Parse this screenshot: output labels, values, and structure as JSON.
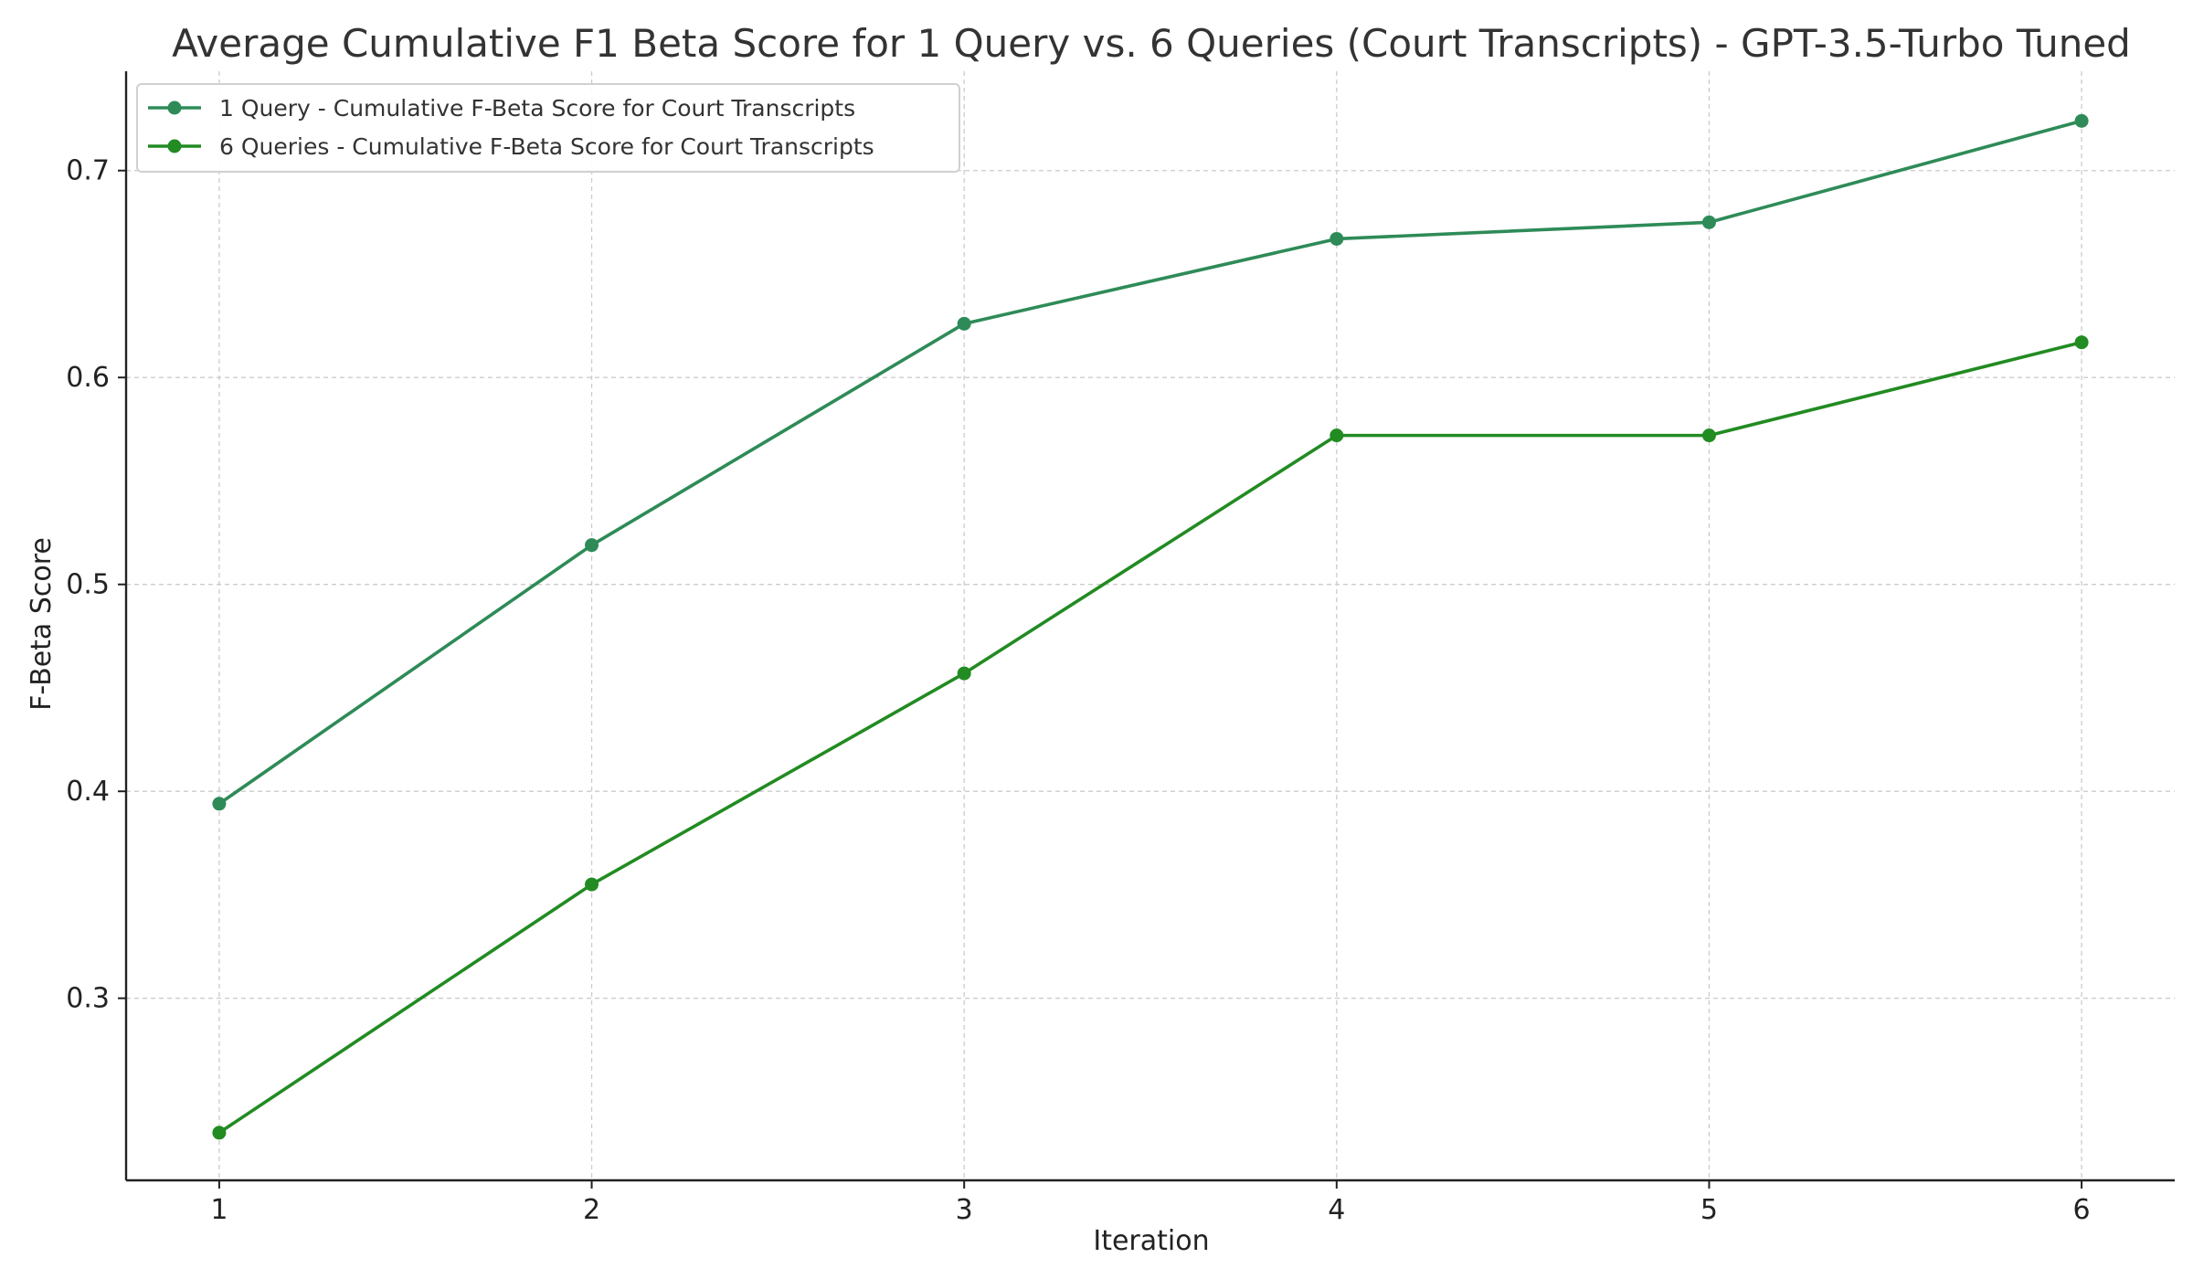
{
  "chart_data": {
    "type": "line",
    "title": "Average Cumulative F1 Beta Score for 1 Query vs. 6 Queries (Court Transcripts) - GPT-3.5-Turbo Tuned",
    "xlabel": "Iteration",
    "ylabel": "F-Beta Score",
    "x": [
      1,
      2,
      3,
      4,
      5,
      6
    ],
    "xlim": [
      0.75,
      6.25
    ],
    "ylim": [
      0.212,
      0.748
    ],
    "xticks": [
      1,
      2,
      3,
      4,
      5,
      6
    ],
    "yticks": [
      0.3,
      0.4,
      0.5,
      0.6,
      0.7
    ],
    "ytick_labels": [
      "0.3",
      "0.4",
      "0.5",
      "0.6",
      "0.7"
    ],
    "grid": true,
    "legend_position": "upper-left",
    "series": [
      {
        "name": "1 Query - Cumulative F-Beta Score for Court Transcripts",
        "values": [
          0.394,
          0.519,
          0.626,
          0.667,
          0.675,
          0.724
        ],
        "color": "#2e8b57",
        "marker": "circle"
      },
      {
        "name": "6 Queries - Cumulative F-Beta Score for Court Transcripts",
        "values": [
          0.235,
          0.355,
          0.457,
          0.572,
          0.572,
          0.617
        ],
        "color": "#228b22",
        "marker": "circle"
      }
    ]
  }
}
